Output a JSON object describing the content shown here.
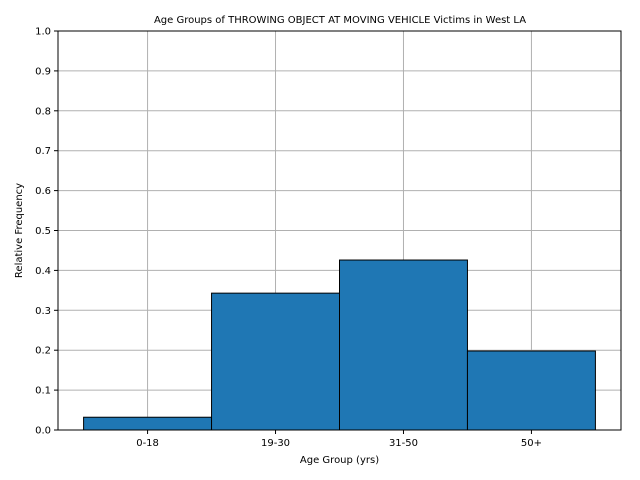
{
  "chart_data": {
    "type": "bar",
    "title": "Age Groups of THROWING OBJECT AT MOVING VEHICLE Victims in West LA",
    "xlabel": "Age Group (yrs)",
    "ylabel": "Relative Frequency",
    "categories": [
      "0-18",
      "19-30",
      "31-50",
      "50+"
    ],
    "values": [
      0.032,
      0.343,
      0.426,
      0.198
    ],
    "ylim": [
      0,
      1.0
    ],
    "yticks": [
      "0.0",
      "0.1",
      "0.2",
      "0.3",
      "0.4",
      "0.5",
      "0.6",
      "0.7",
      "0.8",
      "0.9",
      "1.0"
    ],
    "grid": true,
    "bar_color": "#1f77b4",
    "edge_color": "#000000",
    "grid_color": "#b0b0b0"
  }
}
